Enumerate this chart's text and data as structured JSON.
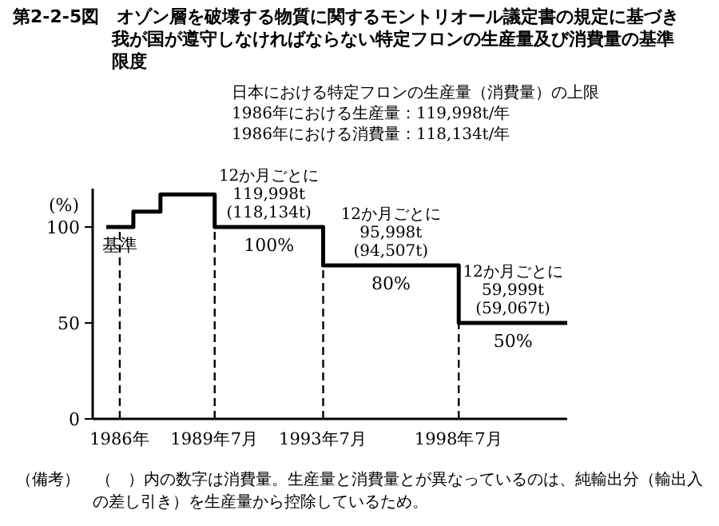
{
  "chart_data": {
    "type": "step",
    "title": "第2-2-5図　オゾン層を破壊する物質に関するモントリオール議定書の規定に基づき我が国が遵守しなければならない特定フロンの生産量及び消費量の基準限度",
    "subtitle": "日本における特定フロンの生産量（消費量）の上限\n1986年における生産量：119,998t/年\n1986年における消費量：118,134t/年",
    "ylabel": "(%)",
    "x": [
      "1985-07",
      "1986-07",
      "1987-07",
      "1989-07",
      "1993-07",
      "1998-07",
      "2002-07"
    ],
    "series": [
      {
        "color": "#000000",
        "values": [
          100,
          108,
          117,
          100,
          80,
          50,
          50
        ]
      }
    ],
    "xlim": [
      "1985-01",
      "2002-07"
    ],
    "xticks": [
      {
        "value": "1986-01",
        "label": "1986年"
      },
      {
        "value": "1989-07",
        "label": "1989年7月"
      },
      {
        "value": "1993-07",
        "label": "1993年7月"
      },
      {
        "value": "1998-07",
        "label": "1998年7月"
      }
    ],
    "ylim": [
      0,
      120
    ],
    "yticks": [
      0,
      50,
      100
    ],
    "ref_lines": [
      {
        "axis": "x",
        "value": "1986-01",
        "line_style": "dashed"
      },
      {
        "axis": "x",
        "value": "1989-07",
        "line_style": "dashed"
      },
      {
        "axis": "x",
        "value": "1993-07",
        "line_style": "dashed"
      },
      {
        "axis": "x",
        "value": "1998-07",
        "line_style": "dashed"
      }
    ],
    "annotations": [
      {
        "text": "基準",
        "x": "1986-01",
        "y": 100
      },
      {
        "text": "100%",
        "x": "1991-07",
        "y": 100
      },
      {
        "text": "80%",
        "x": "1996-01",
        "y": 80
      },
      {
        "text": "50%",
        "x": "2000-07",
        "y": 50
      },
      {
        "text": "12か月ごとに\n119,998t\n(118,134t)",
        "x": "1991-07",
        "y": 100
      },
      {
        "text": "12か月ごとに\n95,998t\n(94,507t)",
        "x": "1996-01",
        "y": 80
      },
      {
        "text": "12か月ごとに\n59,999t\n(59,067t)",
        "x": "2000-07",
        "y": 50
      },
      "（備考）　（　）内の数字は消費量。生産量と消費量とが異なっているのは、純輸出分（輸出入の差し引き）を生産量から控除しているため。"
    ]
  }
}
